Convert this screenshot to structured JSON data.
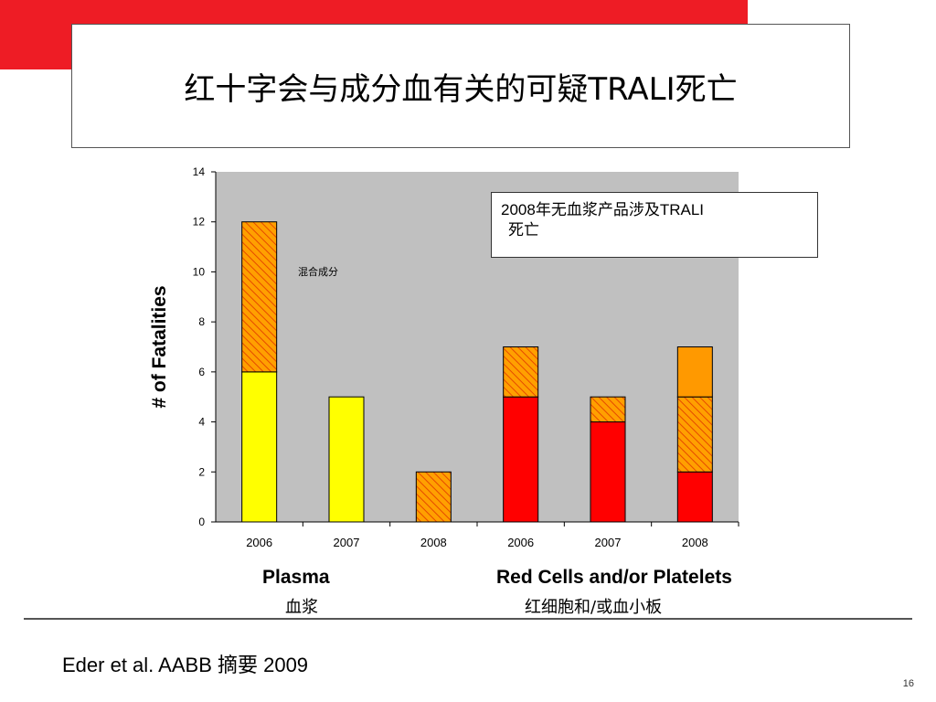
{
  "slide": {
    "title": "红十字会与成分血有关的可疑TRALI死亡",
    "annotation_line1": "2008年无血浆产品涉及TRALI",
    "annotation_line2": "死亡",
    "mixed_note": "混合成分",
    "group1_label": "Plasma",
    "group1_sub": "血浆",
    "group2_label": "Red Cells and/or Platelets",
    "group2_sub": "红细胞和/或血小板",
    "source": "Eder et al. AABB 摘要 2009",
    "page_number": "16"
  },
  "colors": {
    "brand_red": "#ee1c25",
    "plot_bg": "#c0c0c0",
    "yellow": "#ffff00",
    "red": "#ff0000",
    "orange": "#ff9900",
    "hatch_bg": "#ffa000",
    "hatch_line": "#e64a00"
  },
  "chart_data": {
    "type": "bar",
    "stacked": true,
    "categories": [
      "2006",
      "2007",
      "2008",
      "2006",
      "2007",
      "2008"
    ],
    "ylabel": "# of Fatalities",
    "ylim": [
      0,
      14
    ],
    "yticks": [
      0,
      2,
      4,
      6,
      8,
      10,
      12,
      14
    ],
    "grid": false,
    "bars": [
      {
        "segments": [
          {
            "value": 6,
            "fill": "yellow"
          },
          {
            "value": 6,
            "fill": "hatched"
          }
        ]
      },
      {
        "segments": [
          {
            "value": 5,
            "fill": "yellow"
          }
        ]
      },
      {
        "segments": [
          {
            "value": 2,
            "fill": "hatched"
          }
        ]
      },
      {
        "segments": [
          {
            "value": 5,
            "fill": "red"
          },
          {
            "value": 2,
            "fill": "hatched"
          }
        ]
      },
      {
        "segments": [
          {
            "value": 4,
            "fill": "red"
          },
          {
            "value": 1,
            "fill": "hatched"
          }
        ]
      },
      {
        "segments": [
          {
            "value": 2,
            "fill": "red"
          },
          {
            "value": 3,
            "fill": "hatched"
          },
          {
            "value": 2,
            "fill": "orange"
          }
        ]
      }
    ]
  }
}
